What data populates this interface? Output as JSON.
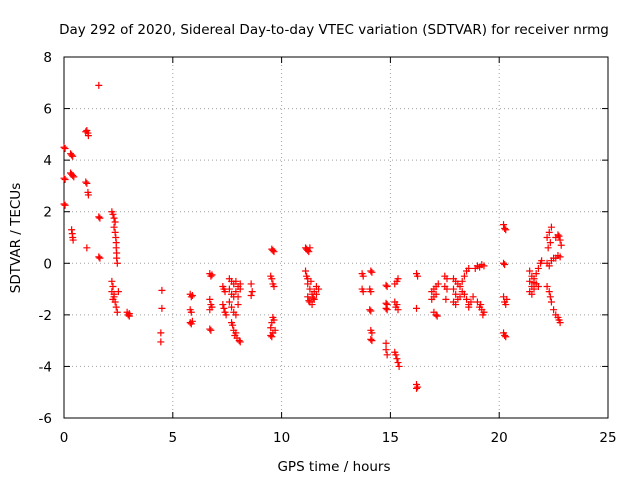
{
  "chart_data": {
    "type": "scatter",
    "title": "Day 292 of 2020, Sidereal Day-to-day VTEC variation (SDTVAR) for receiver nrmg",
    "xlabel": "GPS time / hours",
    "ylabel": "SDTVAR / TECUs",
    "xlim": [
      0,
      25
    ],
    "ylim": [
      -6,
      8
    ],
    "xticks": [
      0,
      5,
      10,
      15,
      20,
      25
    ],
    "yticks": [
      -6,
      -4,
      -2,
      0,
      2,
      4,
      6,
      8
    ],
    "grid": true,
    "marker": "+",
    "series": [
      {
        "name": "SDTVAR",
        "color": "#ff0000",
        "points": [
          [
            0.0,
            4.5
          ],
          [
            0.05,
            4.45
          ],
          [
            0.0,
            3.3
          ],
          [
            0.05,
            3.25
          ],
          [
            0.0,
            2.3
          ],
          [
            0.05,
            2.25
          ],
          [
            0.3,
            4.25
          ],
          [
            0.35,
            4.2
          ],
          [
            0.4,
            4.15
          ],
          [
            0.3,
            3.5
          ],
          [
            0.35,
            3.45
          ],
          [
            0.4,
            3.4
          ],
          [
            0.45,
            3.35
          ],
          [
            0.35,
            1.3
          ],
          [
            0.38,
            1.15
          ],
          [
            0.4,
            1.0
          ],
          [
            0.42,
            0.9
          ],
          [
            1.0,
            5.1
          ],
          [
            1.05,
            5.15
          ],
          [
            1.1,
            5.05
          ],
          [
            1.12,
            4.95
          ],
          [
            1.0,
            3.15
          ],
          [
            1.05,
            3.1
          ],
          [
            1.1,
            2.75
          ],
          [
            1.12,
            2.65
          ],
          [
            1.05,
            0.6
          ],
          [
            1.6,
            6.9
          ],
          [
            1.6,
            1.8
          ],
          [
            1.65,
            1.75
          ],
          [
            1.6,
            0.25
          ],
          [
            1.65,
            0.2
          ],
          [
            2.2,
            2.0
          ],
          [
            2.25,
            1.9
          ],
          [
            2.3,
            1.75
          ],
          [
            2.35,
            1.6
          ],
          [
            2.3,
            1.4
          ],
          [
            2.35,
            1.2
          ],
          [
            2.38,
            1.0
          ],
          [
            2.4,
            0.8
          ],
          [
            2.4,
            0.6
          ],
          [
            2.42,
            0.4
          ],
          [
            2.42,
            0.2
          ],
          [
            2.45,
            0.0
          ],
          [
            2.2,
            -0.7
          ],
          [
            2.25,
            -0.9
          ],
          [
            2.2,
            -1.1
          ],
          [
            2.3,
            -1.3
          ],
          [
            2.35,
            -1.5
          ],
          [
            2.4,
            -1.7
          ],
          [
            2.45,
            -1.9
          ],
          [
            2.3,
            -1.2
          ],
          [
            2.25,
            -1.4
          ],
          [
            2.5,
            -1.1
          ],
          [
            2.9,
            -1.9
          ],
          [
            2.95,
            -2.0
          ],
          [
            3.0,
            -2.05
          ],
          [
            3.0,
            -1.95
          ],
          [
            4.5,
            -1.05
          ],
          [
            4.5,
            -1.75
          ],
          [
            4.45,
            -2.7
          ],
          [
            4.45,
            -3.05
          ],
          [
            5.8,
            -1.2
          ],
          [
            5.85,
            -1.3
          ],
          [
            5.9,
            -1.25
          ],
          [
            5.8,
            -1.8
          ],
          [
            5.85,
            -1.9
          ],
          [
            5.8,
            -2.3
          ],
          [
            5.85,
            -2.35
          ],
          [
            5.9,
            -2.25
          ],
          [
            6.7,
            -0.4
          ],
          [
            6.75,
            -0.5
          ],
          [
            6.8,
            -0.45
          ],
          [
            6.7,
            -1.4
          ],
          [
            6.75,
            -1.6
          ],
          [
            6.7,
            -1.8
          ],
          [
            6.8,
            -1.7
          ],
          [
            6.7,
            -2.55
          ],
          [
            6.75,
            -2.6
          ],
          [
            7.3,
            -0.9
          ],
          [
            7.35,
            -1.0
          ],
          [
            7.4,
            -1.1
          ],
          [
            7.3,
            -1.6
          ],
          [
            7.35,
            -1.75
          ],
          [
            7.4,
            -1.9
          ],
          [
            7.45,
            -2.0
          ],
          [
            7.6,
            -0.6
          ],
          [
            7.7,
            -0.7
          ],
          [
            7.8,
            -0.8
          ],
          [
            7.9,
            -0.7
          ],
          [
            8.0,
            -0.9
          ],
          [
            8.1,
            -0.8
          ],
          [
            7.6,
            -1.0
          ],
          [
            7.7,
            -1.2
          ],
          [
            7.8,
            -1.3
          ],
          [
            7.9,
            -1.1
          ],
          [
            8.0,
            -1.3
          ],
          [
            8.1,
            -1.0
          ],
          [
            7.6,
            -1.5
          ],
          [
            7.7,
            -1.7
          ],
          [
            7.8,
            -1.9
          ],
          [
            7.9,
            -2.0
          ],
          [
            8.0,
            -1.6
          ],
          [
            7.7,
            -2.3
          ],
          [
            7.75,
            -2.4
          ],
          [
            7.8,
            -2.6
          ],
          [
            7.85,
            -2.8
          ],
          [
            7.95,
            -2.9
          ],
          [
            8.05,
            -3.0
          ],
          [
            8.1,
            -3.05
          ],
          [
            7.9,
            -2.7
          ],
          [
            8.6,
            -0.8
          ],
          [
            8.65,
            -1.1
          ],
          [
            8.6,
            -1.25
          ],
          [
            9.55,
            0.55
          ],
          [
            9.6,
            0.5
          ],
          [
            9.65,
            0.45
          ],
          [
            9.5,
            -0.5
          ],
          [
            9.55,
            -0.6
          ],
          [
            9.6,
            -0.8
          ],
          [
            9.65,
            -0.9
          ],
          [
            9.5,
            -2.5
          ],
          [
            9.55,
            -2.3
          ],
          [
            9.6,
            -2.1
          ],
          [
            9.65,
            -2.2
          ],
          [
            9.7,
            -2.6
          ],
          [
            9.5,
            -2.8
          ],
          [
            9.55,
            -2.85
          ],
          [
            9.6,
            -2.7
          ],
          [
            11.1,
            0.6
          ],
          [
            11.15,
            0.55
          ],
          [
            11.2,
            0.5
          ],
          [
            11.25,
            0.45
          ],
          [
            11.3,
            0.6
          ],
          [
            11.1,
            -0.3
          ],
          [
            11.15,
            -0.5
          ],
          [
            11.2,
            -0.6
          ],
          [
            11.2,
            -0.8
          ],
          [
            11.3,
            -1.0
          ],
          [
            11.4,
            -1.2
          ],
          [
            11.5,
            -1.1
          ],
          [
            11.6,
            -0.9
          ],
          [
            11.2,
            -1.3
          ],
          [
            11.3,
            -1.5
          ],
          [
            11.4,
            -1.6
          ],
          [
            11.5,
            -1.4
          ],
          [
            11.6,
            -1.2
          ],
          [
            11.7,
            -1.0
          ],
          [
            11.35,
            -0.7
          ],
          [
            11.45,
            -1.35
          ],
          [
            11.25,
            -1.45
          ],
          [
            13.7,
            -0.4
          ],
          [
            13.75,
            -0.5
          ],
          [
            13.7,
            -1.0
          ],
          [
            13.75,
            -1.1
          ],
          [
            14.1,
            -0.3
          ],
          [
            14.15,
            -0.35
          ],
          [
            14.05,
            -1.0
          ],
          [
            14.1,
            -1.1
          ],
          [
            14.05,
            -1.8
          ],
          [
            14.1,
            -1.85
          ],
          [
            14.1,
            -2.6
          ],
          [
            14.15,
            -2.7
          ],
          [
            14.1,
            -2.95
          ],
          [
            14.15,
            -3.0
          ],
          [
            14.8,
            -0.85
          ],
          [
            14.85,
            -0.9
          ],
          [
            14.8,
            -1.55
          ],
          [
            14.85,
            -1.6
          ],
          [
            14.8,
            -1.75
          ],
          [
            14.85,
            -1.8
          ],
          [
            14.8,
            -3.1
          ],
          [
            14.8,
            -3.35
          ],
          [
            14.85,
            -3.55
          ],
          [
            15.2,
            -0.8
          ],
          [
            15.3,
            -0.7
          ],
          [
            15.35,
            -0.6
          ],
          [
            15.2,
            -1.5
          ],
          [
            15.25,
            -1.7
          ],
          [
            15.3,
            -1.6
          ],
          [
            15.35,
            -1.8
          ],
          [
            15.2,
            -3.45
          ],
          [
            15.25,
            -3.55
          ],
          [
            15.3,
            -3.7
          ],
          [
            15.35,
            -3.85
          ],
          [
            15.4,
            -4.0
          ],
          [
            16.2,
            -0.4
          ],
          [
            16.25,
            -0.5
          ],
          [
            16.2,
            -1.75
          ],
          [
            16.2,
            -4.7
          ],
          [
            16.25,
            -4.8
          ],
          [
            16.2,
            -4.85
          ],
          [
            16.9,
            -1.1
          ],
          [
            17.0,
            -1.0
          ],
          [
            17.1,
            -0.9
          ],
          [
            17.2,
            -0.8
          ],
          [
            16.9,
            -1.4
          ],
          [
            17.0,
            -1.3
          ],
          [
            17.1,
            -1.2
          ],
          [
            17.0,
            -1.9
          ],
          [
            17.1,
            -2.0
          ],
          [
            17.15,
            -2.05
          ],
          [
            17.5,
            -0.5
          ],
          [
            17.6,
            -0.6
          ],
          [
            17.5,
            -0.9
          ],
          [
            17.6,
            -1.0
          ],
          [
            17.55,
            -1.4
          ],
          [
            17.9,
            -0.6
          ],
          [
            18.0,
            -0.7
          ],
          [
            18.1,
            -0.8
          ],
          [
            18.2,
            -0.9
          ],
          [
            18.3,
            -0.7
          ],
          [
            18.4,
            -0.5
          ],
          [
            18.5,
            -0.3
          ],
          [
            18.6,
            -0.2
          ],
          [
            17.9,
            -1.0
          ],
          [
            18.0,
            -1.2
          ],
          [
            18.1,
            -1.4
          ],
          [
            18.2,
            -1.3
          ],
          [
            18.3,
            -1.1
          ],
          [
            18.4,
            -1.2
          ],
          [
            18.5,
            -1.4
          ],
          [
            18.6,
            -1.6
          ],
          [
            17.9,
            -1.5
          ],
          [
            18.0,
            -1.6
          ],
          [
            18.6,
            -1.7
          ],
          [
            18.7,
            -1.5
          ],
          [
            18.8,
            -1.3
          ],
          [
            18.9,
            -0.2
          ],
          [
            19.0,
            -0.1
          ],
          [
            19.1,
            -0.15
          ],
          [
            19.2,
            -0.05
          ],
          [
            19.3,
            -0.1
          ],
          [
            19.0,
            -1.5
          ],
          [
            19.1,
            -1.7
          ],
          [
            19.2,
            -1.8
          ],
          [
            19.3,
            -1.9
          ],
          [
            19.25,
            -2.0
          ],
          [
            19.15,
            -1.6
          ],
          [
            20.2,
            1.5
          ],
          [
            20.25,
            1.35
          ],
          [
            20.3,
            1.3
          ],
          [
            20.2,
            0.0
          ],
          [
            20.25,
            -0.05
          ],
          [
            20.2,
            -1.3
          ],
          [
            20.25,
            -1.5
          ],
          [
            20.3,
            -1.6
          ],
          [
            20.35,
            -1.4
          ],
          [
            20.2,
            -2.7
          ],
          [
            20.25,
            -2.8
          ],
          [
            20.3,
            -2.85
          ],
          [
            21.4,
            -0.3
          ],
          [
            21.5,
            -0.5
          ],
          [
            21.6,
            -0.6
          ],
          [
            21.7,
            -0.4
          ],
          [
            21.8,
            -0.2
          ],
          [
            21.9,
            0.0
          ],
          [
            21.95,
            0.1
          ],
          [
            21.4,
            -0.7
          ],
          [
            21.5,
            -0.9
          ],
          [
            21.6,
            -1.0
          ],
          [
            21.7,
            -0.8
          ],
          [
            21.8,
            -0.9
          ],
          [
            21.4,
            -1.1
          ],
          [
            21.5,
            -1.2
          ],
          [
            21.6,
            -0.75
          ],
          [
            22.2,
            1.0
          ],
          [
            22.3,
            1.2
          ],
          [
            22.4,
            1.4
          ],
          [
            22.35,
            0.8
          ],
          [
            22.25,
            0.6
          ],
          [
            22.2,
            0.0
          ],
          [
            22.3,
            -0.1
          ],
          [
            22.4,
            0.1
          ],
          [
            22.5,
            0.2
          ],
          [
            22.2,
            -0.9
          ],
          [
            22.3,
            -1.1
          ],
          [
            22.35,
            -1.3
          ],
          [
            22.4,
            -1.5
          ],
          [
            22.6,
            1.0
          ],
          [
            22.7,
            1.1
          ],
          [
            22.8,
            0.9
          ],
          [
            22.85,
            0.7
          ],
          [
            22.75,
            1.05
          ],
          [
            22.6,
            0.2
          ],
          [
            22.7,
            0.3
          ],
          [
            22.8,
            0.25
          ],
          [
            22.5,
            -1.8
          ],
          [
            22.6,
            -2.0
          ],
          [
            22.7,
            -2.1
          ],
          [
            22.75,
            -2.2
          ],
          [
            22.8,
            -2.3
          ]
        ]
      }
    ]
  }
}
